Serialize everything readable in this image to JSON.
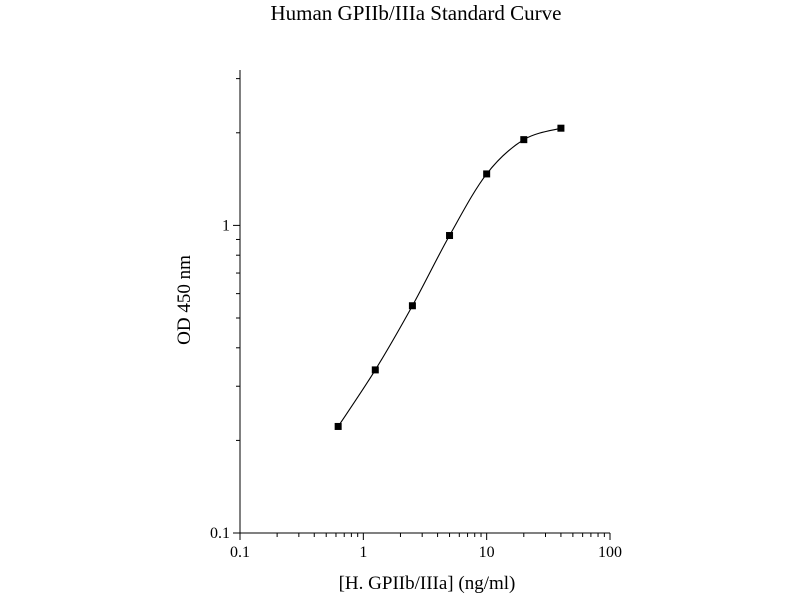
{
  "chart_data": {
    "type": "scatter",
    "title": "Human GPIIb/IIIa Standard Curve",
    "xlabel": "[H. GPIIb/IIIa] (ng/ml)",
    "ylabel": "OD 450 nm",
    "x_scale": "log",
    "y_scale": "log",
    "xlim": [
      0.1,
      100
    ],
    "ylim": [
      0.1,
      3.2
    ],
    "x_ticks": [
      {
        "value": 0.1,
        "label": "0.1"
      },
      {
        "value": 1,
        "label": "1"
      },
      {
        "value": 10,
        "label": "10"
      },
      {
        "value": 100,
        "label": "100"
      }
    ],
    "y_ticks": [
      {
        "value": 0.1,
        "label": "0.1"
      },
      {
        "value": 1,
        "label": "1"
      }
    ],
    "grid": false,
    "legend": "none",
    "series": [
      {
        "x": [
          0.625,
          1.25,
          2.5,
          5,
          10,
          20,
          40
        ],
        "y": [
          0.222,
          0.339,
          0.548,
          0.927,
          1.47,
          1.9,
          2.07
        ],
        "marker": "square",
        "line": "smooth",
        "color": "#000000"
      }
    ]
  }
}
